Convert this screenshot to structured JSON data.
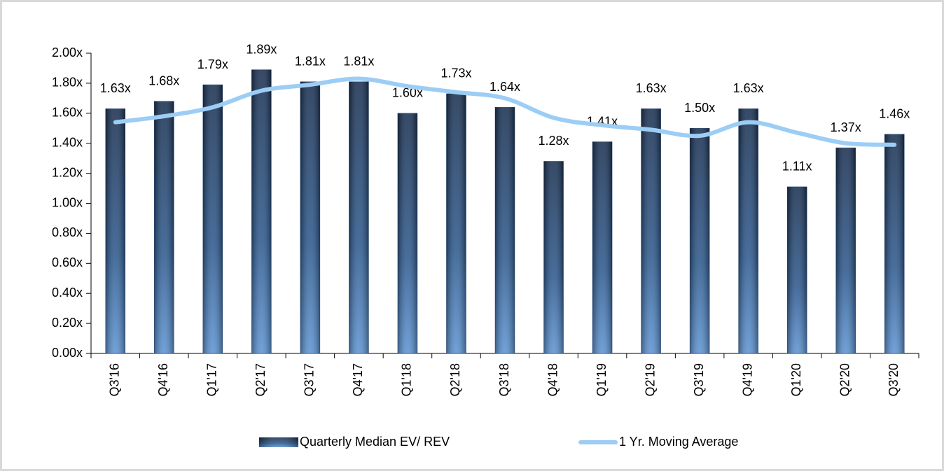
{
  "chart_data": {
    "type": "bar_line",
    "categories": [
      "Q3'16",
      "Q4'16",
      "Q1'17",
      "Q2'17",
      "Q3'17",
      "Q4'17",
      "Q1'18",
      "Q2'18",
      "Q3'18",
      "Q4'18",
      "Q1'19",
      "Q2'19",
      "Q3'19",
      "Q4'19",
      "Q1'20",
      "Q2'20",
      "Q3'20"
    ],
    "series": [
      {
        "name": "Quarterly Median EV/ REV",
        "type": "bar",
        "color": "#2a4d7a",
        "values": [
          1.63,
          1.68,
          1.79,
          1.89,
          1.81,
          1.81,
          1.6,
          1.73,
          1.64,
          1.28,
          1.41,
          1.63,
          1.5,
          1.63,
          1.11,
          1.37,
          1.46
        ],
        "value_labels": [
          "1.63x",
          "1.68x",
          "1.79x",
          "1.89x",
          "1.81x",
          "1.81x",
          "1.60x",
          "1.73x",
          "1.64x",
          "1.28x",
          "1.41x",
          "1.63x",
          "1.50x",
          "1.63x",
          "1.11x",
          "1.37x",
          "1.46x"
        ]
      },
      {
        "name": "1 Yr. Moving Average",
        "type": "line",
        "color": "#9ccdf5",
        "values": [
          1.54,
          1.58,
          1.64,
          1.75,
          1.79,
          1.83,
          1.78,
          1.74,
          1.7,
          1.57,
          1.52,
          1.49,
          1.45,
          1.54,
          1.47,
          1.4,
          1.39
        ]
      }
    ],
    "ylim": [
      0,
      2
    ],
    "yticks": [
      {
        "value": 0,
        "label": "0.00x"
      },
      {
        "value": 0.2,
        "label": "0.20x"
      },
      {
        "value": 0.4,
        "label": "0.40x"
      },
      {
        "value": 0.6,
        "label": "0.60x"
      },
      {
        "value": 0.8,
        "label": "0.80x"
      },
      {
        "value": 1,
        "label": "1.00x"
      },
      {
        "value": 1.2,
        "label": "1.20x"
      },
      {
        "value": 1.4,
        "label": "1.40x"
      },
      {
        "value": 1.6,
        "label": "1.60x"
      },
      {
        "value": 1.8,
        "label": "1.80x"
      },
      {
        "value": 2,
        "label": "2.00x"
      }
    ],
    "legend": "bottom"
  }
}
